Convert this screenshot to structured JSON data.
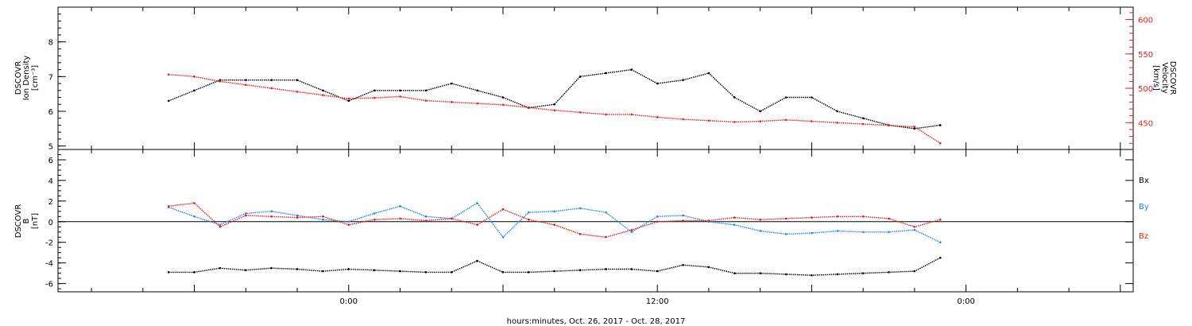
{
  "chart_data": [
    {
      "type": "scatter",
      "ylabel_lines": [
        "DSCOVR",
        "Ion Density",
        "[cm⁻³]"
      ],
      "ylim": [
        4.9,
        9.0
      ],
      "y_ticks": [
        "5",
        "6",
        "7",
        "8"
      ],
      "right_axis": {
        "ylabel_lines": [
          "DSCOVR",
          "Velocity",
          "[km/s]"
        ],
        "ylim": [
          411,
          618
        ],
        "y_ticks": [
          "450",
          "500",
          "550",
          "600"
        ],
        "color": "#e02020"
      },
      "series": [
        {
          "color": "#000000",
          "x": [
            -7,
            -6,
            -5,
            -4,
            -3,
            -2,
            -1,
            0,
            1,
            2,
            3,
            4,
            5,
            6,
            7,
            8,
            9,
            10,
            11,
            12,
            13,
            14,
            15,
            16,
            17,
            18,
            19,
            20,
            21,
            22,
            23
          ],
          "y": [
            6.3,
            6.6,
            6.9,
            6.9,
            6.9,
            6.9,
            6.6,
            6.3,
            6.6,
            6.6,
            6.6,
            6.8,
            6.6,
            6.4,
            6.1,
            6.2,
            7.0,
            7.1,
            7.2,
            6.8,
            6.9,
            7.1,
            6.4,
            6.0,
            6.4,
            6.4,
            6.0,
            5.8,
            5.6,
            5.5,
            5.6
          ]
        },
        {
          "color": "#e02020",
          "axis": "right",
          "x": [
            -7,
            -6,
            -5,
            -4,
            -3,
            -2,
            -1,
            0,
            1,
            2,
            3,
            4,
            5,
            6,
            7,
            8,
            9,
            10,
            11,
            12,
            13,
            14,
            15,
            16,
            17,
            18,
            19,
            20,
            21,
            22,
            23
          ],
          "y": [
            520,
            517,
            510,
            505,
            500,
            495,
            490,
            485,
            486,
            488,
            482,
            480,
            478,
            476,
            472,
            468,
            465,
            462,
            462,
            458,
            455,
            453,
            451,
            452,
            454,
            452,
            450,
            448,
            446,
            444,
            420
          ]
        }
      ]
    },
    {
      "type": "scatter",
      "ylabel_lines": [
        "DSCOVR",
        "B",
        "[nT]"
      ],
      "ylim": [
        -6.8,
        7.0
      ],
      "y_ticks": [
        "-6",
        "-4",
        "-2",
        "0",
        "2",
        "4",
        "6"
      ],
      "legend_placement": "right",
      "series": [
        {
          "name": "Bx",
          "color": "#000000",
          "x": [
            -7,
            -6,
            -5,
            -4,
            -3,
            -2,
            -1,
            0,
            1,
            2,
            3,
            4,
            5,
            6,
            7,
            8,
            9,
            10,
            11,
            12,
            13,
            14,
            15,
            16,
            17,
            18,
            19,
            20,
            21,
            22,
            23
          ],
          "y": [
            -4.9,
            -4.9,
            -4.5,
            -4.7,
            -4.5,
            -4.6,
            -4.8,
            -4.6,
            -4.7,
            -4.8,
            -4.9,
            -4.9,
            -3.8,
            -4.9,
            -4.9,
            -4.8,
            -4.7,
            -4.6,
            -4.6,
            -4.8,
            -4.2,
            -4.4,
            -5.0,
            -5.0,
            -5.1,
            -5.2,
            -5.1,
            -5.0,
            -4.9,
            -4.8,
            -3.5
          ]
        },
        {
          "name": "By",
          "color": "#1e88e5",
          "x": [
            -7,
            -6,
            -5,
            -4,
            -3,
            -2,
            -1,
            0,
            1,
            2,
            3,
            4,
            5,
            6,
            7,
            8,
            9,
            10,
            11,
            12,
            13,
            14,
            15,
            16,
            17,
            18,
            19,
            20,
            21,
            22,
            23
          ],
          "y": [
            1.4,
            0.5,
            -0.3,
            0.8,
            1.0,
            0.6,
            0.2,
            0.0,
            0.8,
            1.5,
            0.5,
            0.3,
            1.8,
            -1.5,
            0.9,
            1.0,
            1.3,
            0.9,
            -1.0,
            0.5,
            0.6,
            0.0,
            -0.3,
            -0.9,
            -1.2,
            -1.1,
            -0.9,
            -1.0,
            -1.0,
            -0.8,
            -2.0
          ]
        },
        {
          "name": "Bz",
          "color": "#e02020",
          "x": [
            -7,
            -6,
            -5,
            -4,
            -3,
            -2,
            -1,
            0,
            1,
            2,
            3,
            4,
            5,
            6,
            7,
            8,
            9,
            10,
            11,
            12,
            13,
            14,
            15,
            16,
            17,
            18,
            19,
            20,
            21,
            22,
            23
          ],
          "y": [
            1.5,
            1.8,
            -0.5,
            0.6,
            0.5,
            0.4,
            0.5,
            -0.3,
            0.2,
            0.3,
            0.1,
            0.3,
            -0.3,
            1.2,
            0.2,
            -0.3,
            -1.2,
            -1.5,
            -0.8,
            0.0,
            0.1,
            0.1,
            0.4,
            0.2,
            0.3,
            0.4,
            0.5,
            0.5,
            0.3,
            -0.5,
            0.2
          ]
        }
      ]
    }
  ],
  "x_axis": {
    "label": "hours:minutes, Oct. 26, 2017 - Oct. 28, 2017",
    "xlim": [
      -11.3,
      30.5
    ],
    "tick_labels": [
      {
        "hour": 0,
        "label": "0:00"
      },
      {
        "hour": 12,
        "label": "12:00"
      },
      {
        "hour": 24,
        "label": "0:00"
      }
    ]
  }
}
